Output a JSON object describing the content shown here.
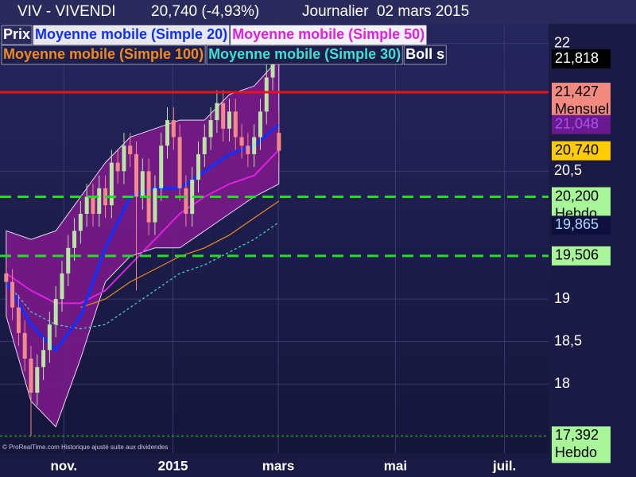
{
  "chart_data": {
    "type": "candlestick",
    "title": "VIV - VIVENDI",
    "subtitle": "20,740 (-4,93%)",
    "period": "Journalier  02 mars 2015",
    "note": "© ProRealTime.com Historique ajusté suite aux dividendes",
    "name": "Prix",
    "up_color": "#b9e6a2",
    "down_color": "#f28a8a",
    "grid": true,
    "xlim": [
      -1,
      87.5
    ],
    "xticks": [
      {
        "value": 9.3,
        "label": "nov."
      },
      {
        "value": 26.9,
        "label": "2015"
      },
      {
        "value": 43.9,
        "label": "mars"
      },
      {
        "value": 62.8,
        "label": "mai"
      },
      {
        "value": 80.4,
        "label": "juil."
      }
    ],
    "ylim": [
      17.19,
      22.51
    ],
    "yticks": [
      {
        "value": 18,
        "label": "18"
      },
      {
        "value": 18.5,
        "label": "18,5"
      },
      {
        "value": 19,
        "label": "19"
      },
      {
        "value": 20.5,
        "label": "20,5"
      },
      {
        "value": 22,
        "label": "22"
      }
    ],
    "open": [
      19.3,
      19.2,
      18.9,
      18.6,
      18.3,
      17.9,
      18.2,
      18.4,
      18.7,
      19.0,
      19.3,
      19.6,
      19.8,
      20.0,
      20.2,
      20.0,
      20.3,
      20.1,
      20.6,
      20.5,
      20.8,
      20.7,
      20.2,
      20.5,
      19.9,
      20.3,
      20.8,
      21.1,
      20.9,
      20.3,
      20.0,
      20.4,
      20.7,
      20.9,
      21.1,
      21.3,
      21.0,
      21.2,
      20.9,
      20.8,
      20.7,
      20.9,
      21.2,
      21.6,
      20.95
    ],
    "high": [
      19.45,
      19.35,
      19.05,
      18.75,
      18.45,
      18.35,
      18.55,
      18.85,
      19.15,
      19.45,
      19.75,
      19.95,
      20.15,
      20.35,
      20.35,
      20.45,
      20.45,
      20.75,
      20.75,
      20.95,
      20.95,
      20.85,
      20.65,
      20.65,
      20.45,
      20.95,
      21.25,
      21.25,
      21.05,
      20.45,
      20.55,
      20.85,
      21.05,
      21.25,
      21.45,
      21.45,
      21.35,
      21.35,
      21.05,
      20.95,
      21.05,
      21.35,
      21.75,
      22.1,
      21.2
    ],
    "low": [
      19.05,
      18.75,
      18.45,
      18.15,
      17.39,
      17.75,
      18.05,
      18.25,
      18.55,
      18.85,
      19.15,
      19.45,
      19.65,
      19.85,
      19.85,
      19.85,
      19.95,
      19.95,
      20.35,
      20.35,
      20.55,
      19.1,
      20.05,
      19.75,
      19.75,
      20.15,
      20.65,
      20.75,
      20.15,
      19.85,
      19.85,
      20.25,
      20.55,
      20.75,
      20.95,
      20.85,
      20.85,
      20.75,
      20.65,
      20.55,
      20.55,
      20.75,
      21.05,
      21.45,
      20.6
    ],
    "close": [
      19.2,
      18.9,
      18.6,
      18.3,
      17.9,
      18.2,
      18.4,
      18.7,
      19.0,
      19.3,
      19.6,
      19.8,
      20.0,
      20.2,
      20.0,
      20.3,
      20.1,
      20.6,
      20.5,
      20.8,
      20.7,
      20.2,
      20.5,
      19.9,
      20.3,
      20.8,
      21.1,
      20.9,
      20.3,
      20.0,
      20.4,
      20.7,
      20.9,
      21.1,
      21.3,
      21.0,
      21.2,
      20.9,
      20.8,
      20.7,
      20.9,
      21.2,
      21.6,
      21.9,
      20.74
    ],
    "series": [
      {
        "name": "Moyenne mobile (Simple 20)",
        "color": "#1030ff",
        "width": 3.5,
        "dash": "none",
        "x": [
          0,
          4,
          8,
          12,
          16,
          20,
          24,
          28,
          32,
          36,
          40,
          44
        ],
        "values": [
          19.2,
          18.7,
          18.4,
          18.8,
          19.6,
          20.2,
          20.3,
          20.3,
          20.5,
          20.7,
          20.8,
          21.05
        ]
      },
      {
        "name": "Moyenne mobile (Simple 50)",
        "color": "#e020e0",
        "width": 2,
        "dash": "none",
        "x": [
          0,
          4,
          8,
          12,
          16,
          20,
          24,
          28,
          32,
          36,
          40,
          44
        ],
        "values": [
          19.3,
          19.1,
          18.95,
          18.95,
          19.1,
          19.4,
          19.7,
          20.0,
          20.2,
          20.35,
          20.45,
          20.75
        ]
      },
      {
        "name": "Moyenne mobile (Simple 100)",
        "color": "#f08a20",
        "width": 1.2,
        "dash": "none",
        "x": [
          0,
          4,
          8,
          12,
          16,
          20,
          24,
          28,
          32,
          36,
          40,
          44
        ],
        "values": [
          null,
          null,
          null,
          18.9,
          19.0,
          19.2,
          19.35,
          19.5,
          19.6,
          19.75,
          19.95,
          20.15
        ]
      },
      {
        "name": "Moyenne mobile (Simple 30)",
        "color": "#40e0d0",
        "width": 1.2,
        "dash": "3 3",
        "x": [
          0,
          4,
          8,
          12,
          16,
          20,
          24,
          28,
          32,
          36,
          40,
          44
        ],
        "values": [
          19.2,
          18.85,
          18.7,
          18.65,
          18.7,
          18.9,
          19.1,
          19.3,
          19.4,
          19.55,
          19.7,
          19.9
        ]
      }
    ],
    "band": {
      "name": "Boll s",
      "color": "#7a1a8a",
      "x": [
        0,
        4,
        8,
        12,
        16,
        20,
        24,
        28,
        32,
        36,
        40,
        44
      ],
      "upper": [
        19.8,
        19.7,
        19.8,
        20.2,
        20.6,
        20.9,
        21.0,
        21.1,
        21.1,
        21.4,
        21.5,
        21.82
      ],
      "lower": [
        18.8,
        17.8,
        17.5,
        18.3,
        19.2,
        19.5,
        19.6,
        19.6,
        19.8,
        20.0,
        20.2,
        20.35
      ]
    },
    "levels": [
      {
        "value": 21.427,
        "label": "21,427",
        "note": "Mensuel",
        "color": "#ee1111",
        "label_color": "#f28a80",
        "style": "solid"
      },
      {
        "value": 20.2,
        "label": "20,200",
        "note": "Hebdo",
        "color": "#22dd22",
        "label_color": "#a8f59a",
        "style": "dashed"
      },
      {
        "value": 19.506,
        "label": "19,506",
        "color": "#22dd22",
        "label_color": "#a8f59a",
        "style": "dashed"
      },
      {
        "value": 17.392,
        "label": "17,392",
        "note": "Hebdo",
        "color": "#22dd22",
        "label_color": "#a8f59a",
        "style": "dotted"
      }
    ],
    "price_labels": [
      {
        "value": 21.818,
        "label": "21,818",
        "color": "#000000",
        "text_color": "#ffffff"
      },
      {
        "value": 21.048,
        "label": "21,048",
        "color": "#6a1a90",
        "text_color": "#b050f0"
      },
      {
        "value": 20.74,
        "label": "20,740",
        "color": "#ffcc00",
        "text_color": "#000000"
      },
      {
        "value": 19.865,
        "label": "19,865",
        "color": "#101040",
        "text_color": "#a8dcff"
      }
    ]
  }
}
